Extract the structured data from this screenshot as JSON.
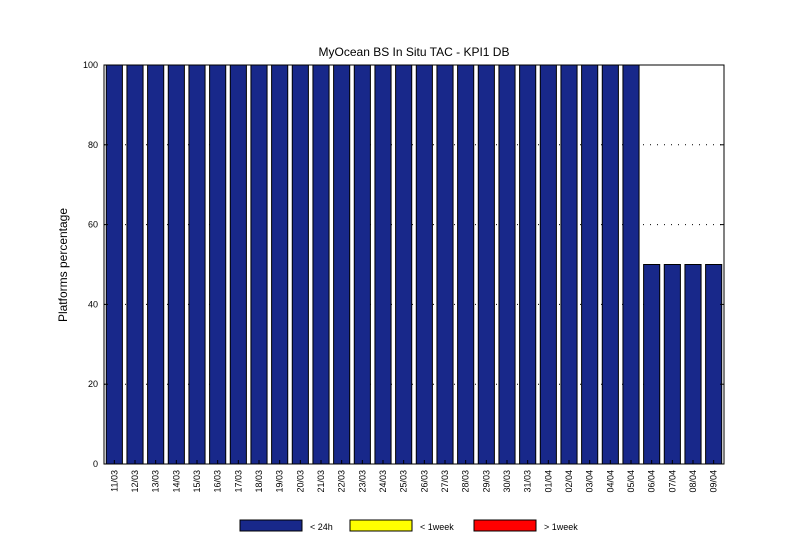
{
  "chart_data": {
    "type": "bar",
    "stacked": true,
    "title": "MyOcean  BS In Situ TAC - KPI1  DB",
    "xlabel": "",
    "ylabel": "Platforms percentage",
    "ylim": [
      0,
      100
    ],
    "yticks": [
      0,
      20,
      40,
      60,
      80,
      100
    ],
    "grid": "dotted horizontal",
    "legend_position": "bottom",
    "categories": [
      "11/03",
      "12/03",
      "13/03",
      "14/03",
      "15/03",
      "16/03",
      "17/03",
      "18/03",
      "19/03",
      "20/03",
      "21/03",
      "22/03",
      "23/03",
      "24/03",
      "25/03",
      "26/03",
      "27/03",
      "28/03",
      "29/03",
      "30/03",
      "31/03",
      "01/04",
      "02/04",
      "03/04",
      "04/04",
      "05/04",
      "06/04",
      "07/04",
      "08/04",
      "09/04"
    ],
    "series": [
      {
        "name": "< 24h",
        "color": "#18288a",
        "values": [
          100,
          100,
          100,
          100,
          100,
          100,
          100,
          100,
          100,
          100,
          100,
          100,
          100,
          100,
          100,
          100,
          100,
          100,
          100,
          100,
          100,
          100,
          100,
          100,
          100,
          100,
          50,
          50,
          50,
          50
        ]
      },
      {
        "name": "< 1week",
        "color": "#ffff00",
        "values": [
          0,
          0,
          0,
          0,
          0,
          0,
          0,
          0,
          0,
          0,
          0,
          0,
          0,
          0,
          0,
          0,
          0,
          0,
          0,
          0,
          0,
          0,
          0,
          0,
          0,
          0,
          0,
          0,
          0,
          0
        ]
      },
      {
        "name": "> 1week",
        "color": "#ff0000",
        "values": [
          0,
          0,
          0,
          0,
          0,
          0,
          0,
          0,
          0,
          0,
          0,
          0,
          0,
          0,
          0,
          0,
          0,
          0,
          0,
          0,
          0,
          0,
          0,
          0,
          0,
          0,
          0,
          0,
          0,
          0
        ]
      }
    ]
  }
}
